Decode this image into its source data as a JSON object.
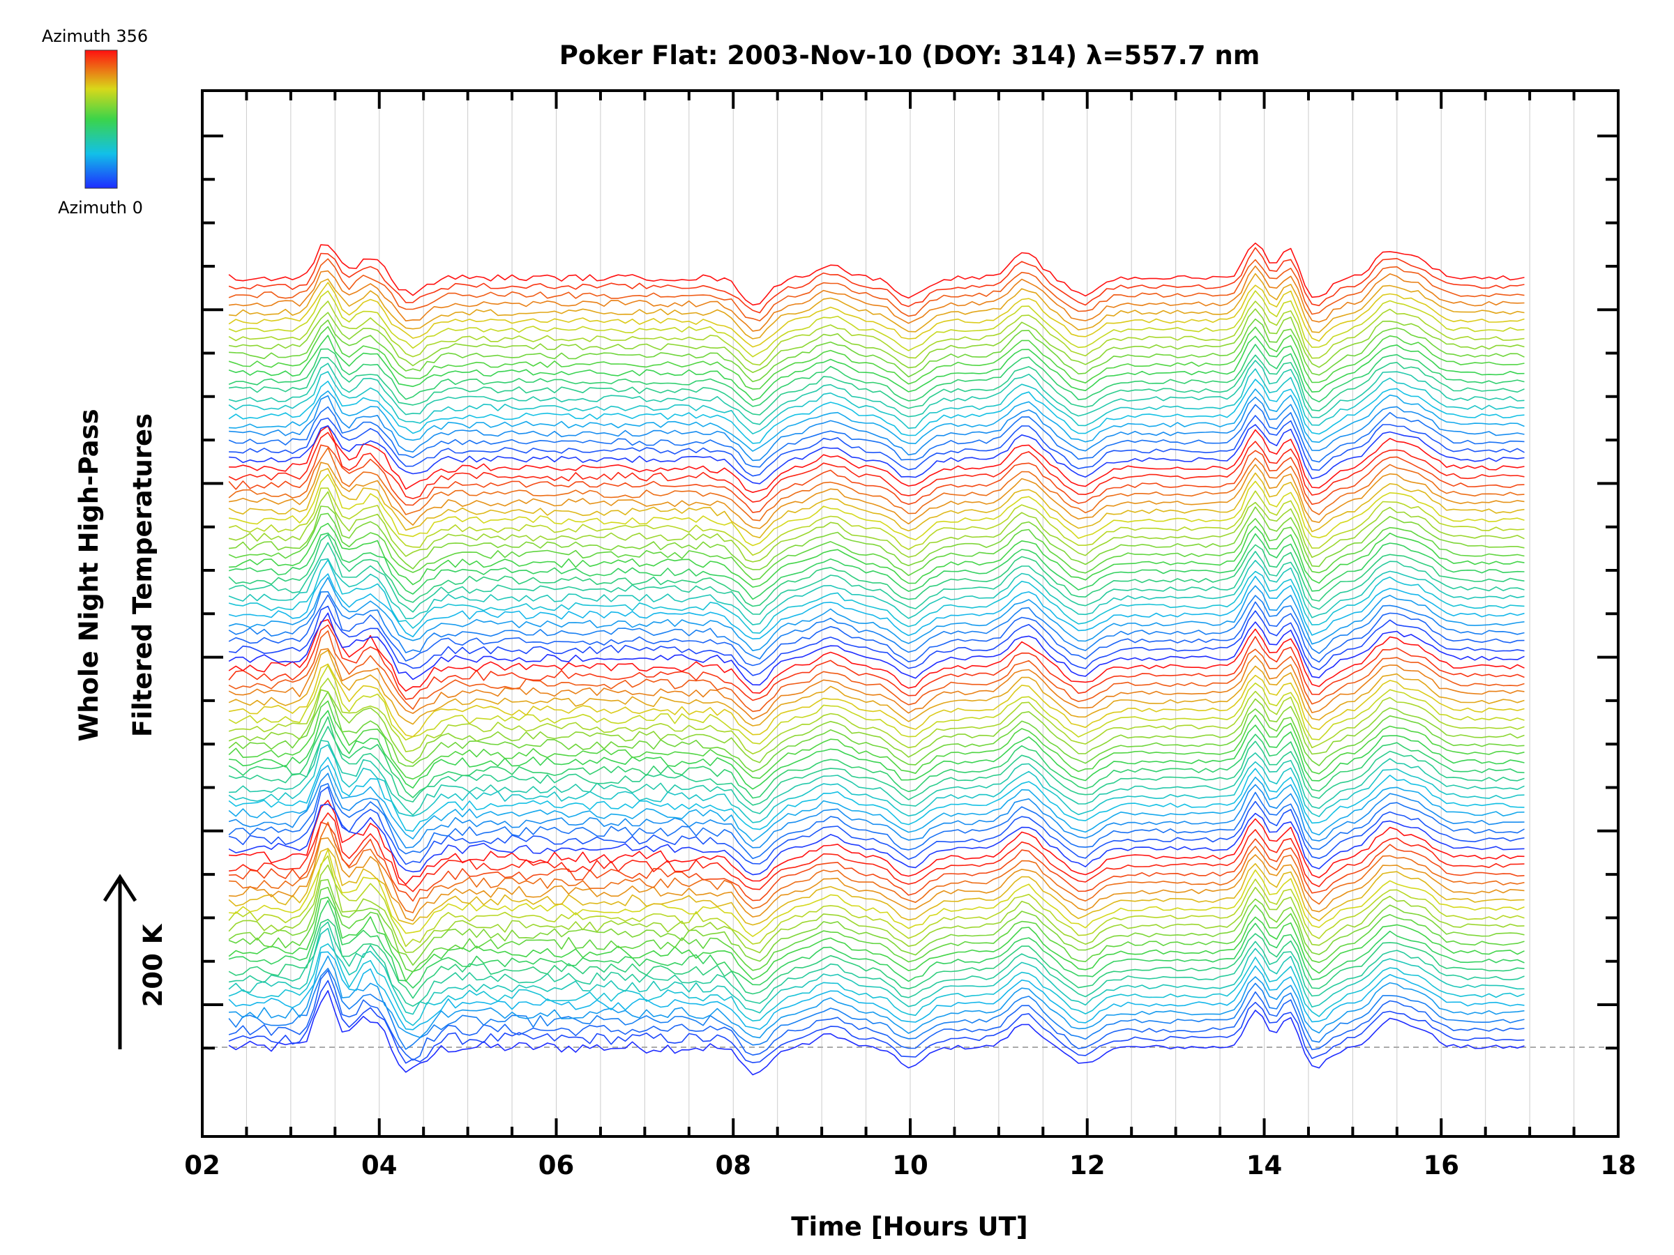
{
  "chart_data": {
    "type": "line",
    "title": "Poker Flat: 2003-Nov-10 (DOY: 314) λ=557.7 nm",
    "xlabel": "Time [Hours UT]",
    "ylabel_line1": "Whole Night High-Pass",
    "ylabel_line2": "Filtered Temperatures",
    "scale_label": "200 K",
    "colorbar": {
      "top_label": "Azimuth 356",
      "bottom_label": "Azimuth 0"
    },
    "xlim": [
      2,
      18
    ],
    "xticks": [
      "02",
      "04",
      "06",
      "08",
      "10",
      "12",
      "14",
      "16",
      "18"
    ],
    "x_start": 2.3,
    "x_end": 17.0,
    "series_count": 90,
    "azimuth_step_deg": 4,
    "series_offset_K": 20,
    "azimuth_color_cycles": 4,
    "grid_vertical": true,
    "baseline_dashed": true,
    "features": [
      {
        "time": 3.4,
        "amplitude_K": 130,
        "note": "large early peak"
      },
      {
        "time": 3.9,
        "amplitude_K": 70
      },
      {
        "time": 4.35,
        "amplitude_K": -60
      },
      {
        "time": 8.25,
        "amplitude_K": -60,
        "note": "deep trough"
      },
      {
        "time": 9.1,
        "amplitude_K": 30
      },
      {
        "time": 10.0,
        "amplitude_K": -45
      },
      {
        "time": 11.3,
        "amplitude_K": 55
      },
      {
        "time": 11.95,
        "amplitude_K": -40
      },
      {
        "time": 13.9,
        "amplitude_K": 85,
        "note": "sharp peak"
      },
      {
        "time": 14.3,
        "amplitude_K": 80,
        "note": "sharp peak"
      },
      {
        "time": 14.55,
        "amplitude_K": -50
      },
      {
        "time": 15.4,
        "amplitude_K": 60
      },
      {
        "time": 15.75,
        "amplitude_K": 40
      }
    ]
  },
  "colors": {
    "grid": "#cccccc",
    "baseline": "#aaaaaa",
    "axis": "#000000"
  }
}
